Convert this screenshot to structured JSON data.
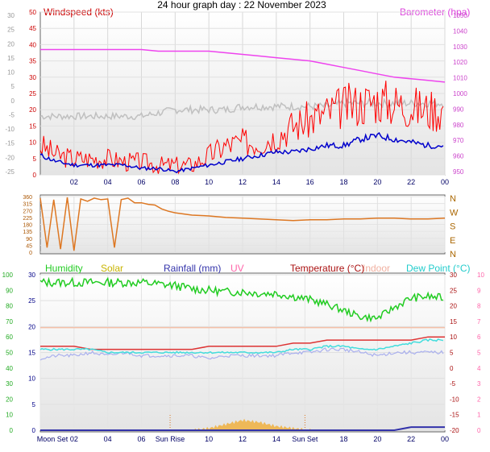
{
  "title": "24 hour graph day : 22 November 2023",
  "colors": {
    "windspeed": "#ff0000",
    "windgust_band": "#cc0000",
    "windavg": "#0000cc",
    "barometer": "#ee44ee",
    "direction": "#dd7722",
    "humidity": "#22cc22",
    "solar": "#f0b040",
    "rainfall": "#3333aa",
    "uv": "#ff66aa",
    "temperature": "#dd3333",
    "indoor": "#f4c0a8",
    "dewpoint": "#44dddd",
    "grey_series": "#c0c0c0",
    "lavender_series": "#aab0ee"
  },
  "chart_data": [
    {
      "type": "line",
      "panel": "wind",
      "legend_left": "Windspeed (kts)",
      "legend_right": "Barometer (hpa)",
      "x_ticks": [
        "02",
        "04",
        "06",
        "08",
        "10",
        "12",
        "14",
        "16",
        "18",
        "20",
        "22",
        "00"
      ],
      "y_left_outer_ticks": [
        "30",
        "25",
        "20",
        "15",
        "10",
        "5",
        "0",
        "-5",
        "-10",
        "-15",
        "-20",
        "-25"
      ],
      "y_left_inner_ticks": [
        "50",
        "45",
        "40",
        "35",
        "30",
        "25",
        "20",
        "15",
        "10",
        "5",
        "0"
      ],
      "y_right_ticks": [
        "1050",
        "1040",
        "1030",
        "1020",
        "1010",
        "1000",
        "990",
        "980",
        "970",
        "960",
        "950"
      ],
      "x_hours": [
        0,
        1,
        2,
        3,
        4,
        5,
        6,
        7,
        8,
        9,
        10,
        11,
        12,
        13,
        14,
        15,
        16,
        17,
        18,
        19,
        20,
        21,
        22,
        23,
        24
      ],
      "ylim_kts": [
        0,
        50
      ],
      "ylim_hpa": [
        950,
        1050
      ],
      "series": [
        {
          "name": "Windspeed (kts)",
          "axis": "kts",
          "values": [
            9,
            6,
            5,
            5,
            5,
            4,
            4,
            3,
            3,
            3,
            6,
            9,
            10,
            10,
            12,
            15,
            17,
            19,
            21,
            22,
            23,
            22,
            21,
            20,
            20
          ]
        },
        {
          "name": "Barometer (hpa)",
          "axis": "hpa",
          "values": [
            1027,
            1027,
            1027,
            1027,
            1027,
            1027,
            1027,
            1026,
            1026,
            1026,
            1026,
            1025,
            1024,
            1023,
            1022,
            1021,
            1020,
            1018,
            1016,
            1014,
            1012,
            1010,
            1009,
            1008,
            1007
          ]
        }
      ],
      "extra_series": {
        "gray": [
          18,
          18,
          18,
          18,
          18,
          18,
          18,
          19,
          20,
          20,
          20,
          20,
          21,
          21,
          21,
          21,
          21,
          21,
          22,
          22,
          22,
          22,
          22,
          22,
          22
        ],
        "blue": [
          6,
          4,
          3,
          3,
          3,
          3,
          2,
          2,
          1,
          2,
          3,
          4,
          5,
          6,
          7,
          7,
          8,
          9,
          9,
          11,
          12,
          11,
          10,
          9,
          9
        ]
      }
    },
    {
      "type": "scatter",
      "panel": "direction",
      "y_ticks": [
        "360",
        "315",
        "270",
        "225",
        "180",
        "135",
        "90",
        "45",
        "0"
      ],
      "compass": [
        "N",
        "W",
        "S",
        "E",
        "N"
      ],
      "ylim_deg": [
        0,
        360
      ],
      "x_hours": [
        0,
        0.4,
        0.8,
        1.2,
        1.6,
        2,
        2.4,
        2.8,
        3.2,
        3.6,
        4,
        4.4,
        4.8,
        5.2,
        5.6,
        6,
        6.4,
        6.8,
        7.2,
        7.6,
        8,
        9,
        10,
        11,
        12,
        13,
        14,
        15,
        16,
        17,
        18,
        19,
        20,
        21,
        22,
        23,
        24
      ],
      "values": [
        350,
        30,
        340,
        20,
        355,
        10,
        345,
        330,
        350,
        340,
        345,
        30,
        340,
        350,
        320,
        320,
        310,
        305,
        280,
        265,
        255,
        240,
        235,
        225,
        220,
        215,
        210,
        205,
        210,
        210,
        215,
        215,
        220,
        220,
        215,
        215,
        220
      ]
    },
    {
      "type": "line",
      "panel": "climate",
      "legend": [
        "Humidity",
        "Solar",
        "Rainfall (mm)",
        "UV",
        "Temperature (°C)",
        "Indoor",
        "Dew Point (°C)"
      ],
      "x_ticks": [
        "Moon Set",
        "02",
        "04",
        "06",
        "Sun Rise",
        "10",
        "12",
        "14",
        "Sun Set",
        "18",
        "20",
        "22",
        "00"
      ],
      "y_humidity_ticks": [
        "100",
        "90",
        "80",
        "70",
        "60",
        "50",
        "40",
        "30",
        "20",
        "10",
        "0"
      ],
      "y_temp_left_ticks": [
        "30",
        "25",
        "20",
        "15",
        "10",
        "5",
        "0"
      ],
      "y_temp_right_ticks": [
        "30",
        "25",
        "20",
        "15",
        "10",
        "5",
        "0",
        "-5",
        "-10",
        "-15",
        "-20"
      ],
      "y_uv_ticks": [
        "10",
        "9",
        "8",
        "7",
        "6",
        "5",
        "4",
        "3",
        "2",
        "1",
        "0"
      ],
      "ylim_humidity": [
        0,
        100
      ],
      "ylim_temp_c": [
        -20,
        30
      ],
      "x_hours": [
        0,
        1,
        2,
        3,
        4,
        5,
        6,
        7,
        8,
        9,
        10,
        11,
        12,
        13,
        14,
        15,
        16,
        17,
        18,
        19,
        20,
        21,
        22,
        23,
        24
      ],
      "series": [
        {
          "name": "Humidity",
          "axis": "pct",
          "values": [
            95,
            95,
            95,
            95,
            95,
            95,
            95,
            94,
            93,
            91,
            90,
            89,
            89,
            88,
            88,
            86,
            84,
            81,
            77,
            73,
            72,
            79,
            85,
            86,
            85
          ]
        },
        {
          "name": "Temperature (°C)",
          "axis": "c",
          "values": [
            7,
            7,
            7,
            6,
            6,
            6,
            6,
            6,
            6,
            6,
            7,
            7,
            7,
            7,
            7,
            8,
            8,
            9,
            9,
            9,
            9,
            9,
            9,
            10,
            10
          ]
        },
        {
          "name": "Indoor",
          "axis": "c",
          "values": [
            13,
            13,
            13,
            13,
            13,
            13,
            13,
            13,
            13,
            13,
            13,
            13,
            13,
            13,
            13,
            13,
            13,
            13,
            13,
            13,
            13,
            13,
            13,
            13,
            13
          ]
        },
        {
          "name": "Dew Point (°C)",
          "axis": "c",
          "values": [
            6,
            6,
            6,
            6,
            5,
            5,
            5,
            5,
            5,
            5,
            5,
            5,
            5,
            5,
            5,
            6,
            6,
            7,
            7,
            6,
            6,
            7,
            8,
            9,
            9
          ]
        },
        {
          "name": "Rainfall (mm)",
          "axis": "c",
          "values": [
            -20,
            -20,
            -20,
            -20,
            -20,
            -20,
            -20,
            -20,
            -20,
            -20,
            -20,
            -20,
            -20,
            -20,
            -20,
            -20,
            -20,
            -20,
            -20,
            -20,
            -20,
            -20,
            -19,
            -19,
            -19
          ]
        }
      ],
      "extra_series": {
        "lavender": [
          3,
          4,
          4,
          5,
          4,
          5,
          4,
          4,
          4,
          4,
          3,
          4,
          4,
          4,
          4,
          5,
          5,
          6,
          6,
          5,
          4,
          5,
          5,
          5,
          5
        ]
      },
      "solar_values": [
        0,
        0,
        0,
        0,
        0,
        0,
        0,
        0,
        0,
        0,
        0.5,
        1.5,
        2.5,
        2,
        1,
        0.5,
        0,
        0,
        0,
        0,
        0,
        0,
        0,
        0,
        0
      ]
    }
  ]
}
